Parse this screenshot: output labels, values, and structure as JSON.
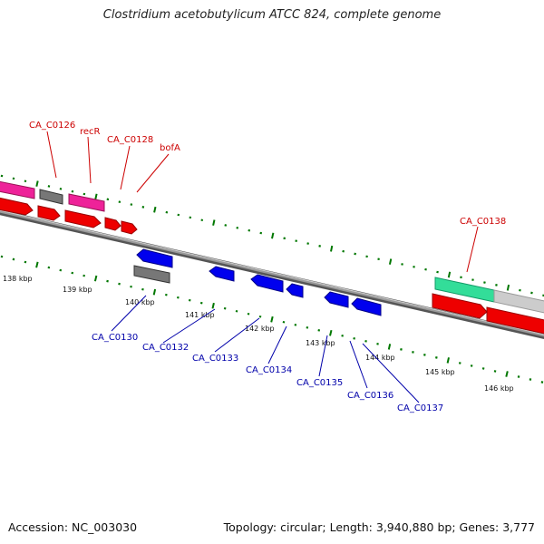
{
  "title": "Clostridium acetobutylicum ATCC 824, complete genome",
  "accession_label": "Accession: NC_003030",
  "topology_label": "Topology: circular; Length: 3,940,880 bp; Genes: 3,777",
  "colors": {
    "forward_cds": "#ee0000",
    "reverse_cds": "#0000ee",
    "pink_feature": "#ee2299",
    "grey_feature": "#777777",
    "green_feature": "#33dd99",
    "light_grey_feature": "#cccccc",
    "backbone": "#888888",
    "tick": "#007700",
    "label_red": "#cc0000",
    "label_blue": "#0000aa"
  },
  "ticks": {
    "kbp": [
      "138 kbp",
      "139 kbp",
      "140 kbp",
      "141 kbp",
      "142 kbp",
      "143 kbp",
      "144 kbp",
      "145 kbp",
      "146 kbp"
    ]
  },
  "gene_labels": {
    "top": [
      "CA_C0126",
      "recR",
      "CA_C0128",
      "bofA",
      "CA_C0138"
    ],
    "bottom": [
      "CA_C0130",
      "CA_C0132",
      "CA_C0133",
      "CA_C0134",
      "CA_C0135",
      "CA_C0136",
      "CA_C0137"
    ]
  }
}
